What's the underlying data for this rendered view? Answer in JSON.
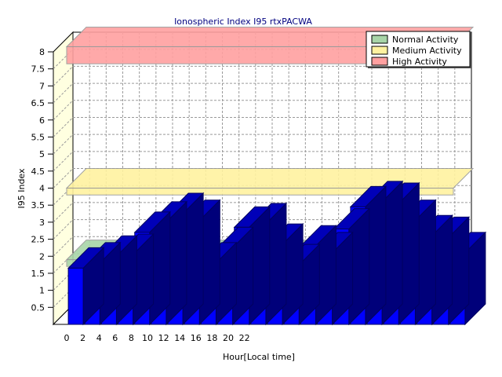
{
  "chart_data": {
    "type": "bar",
    "title": "Ionospheric Index I95 rtxPACWA",
    "xlabel": "Hour[Local time]",
    "ylabel": "I95 Index",
    "ylim": [
      0,
      8
    ],
    "yticks": [
      "0.5",
      "1",
      "1.5",
      "2",
      "2.5",
      "3",
      "3.5",
      "4",
      "4.5",
      "5",
      "5.5",
      "6",
      "6.5",
      "7",
      "7.5",
      "8"
    ],
    "xticks": [
      "0",
      "2",
      "4",
      "6",
      "8",
      "10",
      "12",
      "14",
      "16",
      "18",
      "20",
      "22"
    ],
    "x": [
      0,
      1,
      2,
      3,
      4,
      5,
      6,
      7,
      8,
      9,
      10,
      11,
      12,
      13,
      14,
      15,
      16,
      17,
      18,
      19,
      20,
      21,
      22,
      23
    ],
    "values": [
      1.65,
      1.8,
      2.0,
      2.05,
      2.7,
      3.0,
      3.25,
      3.05,
      1.8,
      2.25,
      2.85,
      2.95,
      2.35,
      1.75,
      2.3,
      2.1,
      2.8,
      3.45,
      3.6,
      3.55,
      3.05,
      2.6,
      2.55,
      2.1
    ],
    "grid": true,
    "legend_position": "top-right",
    "bands": [
      {
        "name": "Normal Activity",
        "from": 1.8,
        "to": 2.0,
        "color": "#a8d5a8"
      },
      {
        "name": "Medium Activity",
        "from": 3.9,
        "to": 4.1,
        "color": "#fff2a0"
      },
      {
        "name": "High Activity",
        "from": 7.9,
        "to": 8.4,
        "color": "#ffa0a0"
      }
    ],
    "bar_color": "#0000ff"
  }
}
